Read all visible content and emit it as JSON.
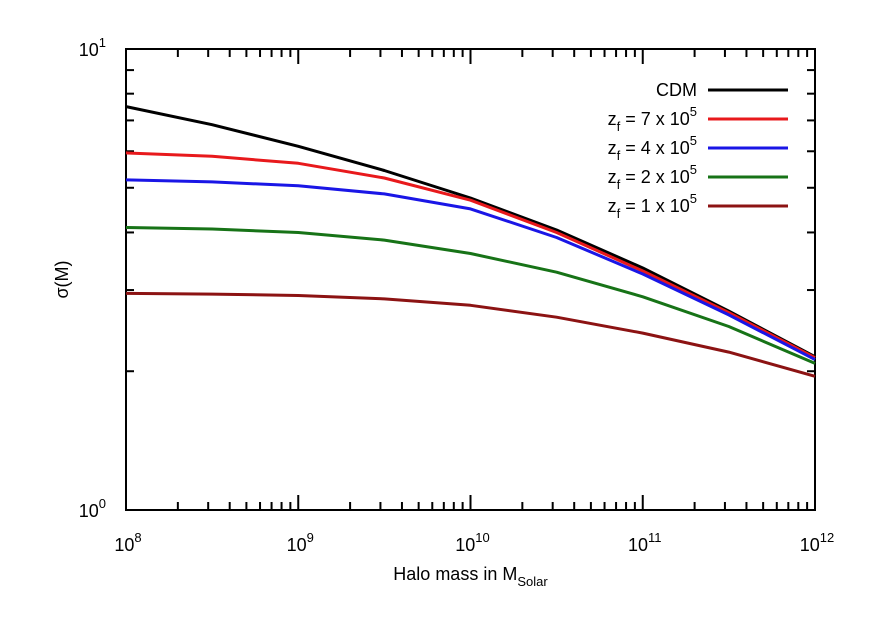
{
  "chart_data": {
    "type": "line",
    "title": "",
    "xlabel": "Halo mass in M",
    "xlabel_sub": "Solar",
    "ylabel": "σ(M)",
    "xscale": "log",
    "yscale": "log",
    "xlim": [
      100000000.0,
      1000000000000.0
    ],
    "ylim": [
      1,
      10
    ],
    "grid": false,
    "legend_position": "top-right",
    "x_ticks": [
      {
        "base": "10",
        "exp": "8",
        "value": 100000000.0
      },
      {
        "base": "10",
        "exp": "9",
        "value": 1000000000.0
      },
      {
        "base": "10",
        "exp": "10",
        "value": 10000000000.0
      },
      {
        "base": "10",
        "exp": "11",
        "value": 100000000000.0
      },
      {
        "base": "10",
        "exp": "12",
        "value": 1000000000000.0
      }
    ],
    "y_ticks": [
      {
        "base": "10",
        "exp": "0",
        "value": 1
      },
      {
        "base": "10",
        "exp": "1",
        "value": 10
      }
    ],
    "x": [
      100000000.0,
      316000000.0,
      1000000000.0,
      3160000000.0,
      10000000000.0,
      31600000000.0,
      100000000000.0,
      316000000000.0,
      1000000000000.0
    ],
    "series": [
      {
        "name": "CDM",
        "label_main": "CDM",
        "label_sub": "",
        "label_tail": "",
        "label_sup": "",
        "color": "#000000",
        "values": [
          7.5,
          6.85,
          6.15,
          5.45,
          4.75,
          4.05,
          3.35,
          2.7,
          2.15
        ]
      },
      {
        "name": "z_f = 7 x 10^5",
        "label_main": "z",
        "label_sub": "f",
        "label_tail": " = 7 x 10",
        "label_sup": "5",
        "color": "#e8191c",
        "values": [
          5.95,
          5.85,
          5.65,
          5.25,
          4.7,
          4.0,
          3.3,
          2.68,
          2.14
        ]
      },
      {
        "name": "z_f = 4 x 10^5",
        "label_main": "z",
        "label_sub": "f",
        "label_tail": " = 4 x 10",
        "label_sup": "5",
        "color": "#1a16e6",
        "values": [
          5.2,
          5.15,
          5.05,
          4.85,
          4.5,
          3.9,
          3.25,
          2.65,
          2.12
        ]
      },
      {
        "name": "z_f = 2 x 10^5",
        "label_main": "z",
        "label_sub": "f",
        "label_tail": " = 2 x 10",
        "label_sup": "5",
        "color": "#177317",
        "values": [
          4.1,
          4.07,
          4.0,
          3.85,
          3.6,
          3.28,
          2.9,
          2.5,
          2.08
        ]
      },
      {
        "name": "z_f = 1 x 10^5",
        "label_main": "z",
        "label_sub": "f",
        "label_tail": " = 1 x 10",
        "label_sup": "5",
        "color": "#8c1313",
        "values": [
          2.95,
          2.94,
          2.92,
          2.87,
          2.78,
          2.62,
          2.42,
          2.2,
          1.95
        ]
      }
    ]
  }
}
